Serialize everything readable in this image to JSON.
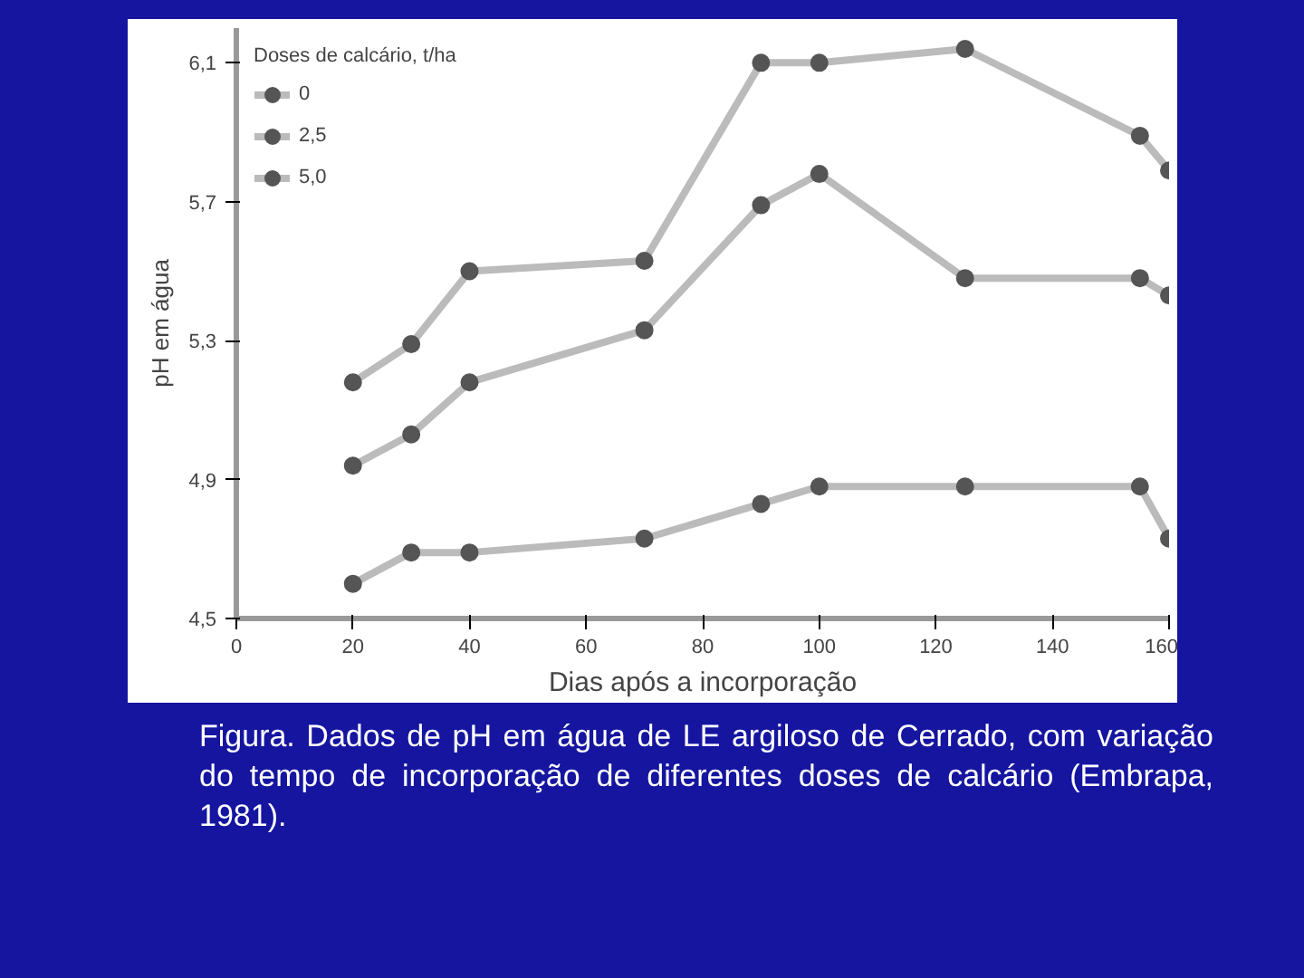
{
  "chart_data": {
    "type": "line",
    "xlabel": "Dias após a incorporação",
    "ylabel": "pH em água",
    "legend_title": "Doses de calcário, t/ha",
    "x": [
      20,
      30,
      40,
      70,
      90,
      100,
      125,
      155,
      160
    ],
    "series": [
      {
        "name": "0",
        "color": "#555555",
        "values": [
          4.6,
          4.69,
          4.69,
          4.73,
          4.83,
          4.88,
          4.88,
          4.88,
          4.73
        ]
      },
      {
        "name": "2,5",
        "color": "#555555",
        "values": [
          4.94,
          5.03,
          5.18,
          5.33,
          5.69,
          5.78,
          5.48,
          5.48,
          5.43
        ]
      },
      {
        "name": "5,0",
        "color": "#555555",
        "values": [
          5.18,
          5.29,
          5.5,
          5.53,
          6.1,
          6.1,
          6.14,
          5.89,
          5.79
        ]
      }
    ],
    "xlim": [
      0,
      160
    ],
    "xticks": [
      0,
      20,
      40,
      60,
      80,
      100,
      120,
      140,
      160
    ],
    "ylim": [
      4.5,
      6.2
    ],
    "yticks": [
      {
        "value": 4.5,
        "label": "4,5"
      },
      {
        "value": 4.9,
        "label": "4,9"
      },
      {
        "value": 5.3,
        "label": "5,3"
      },
      {
        "value": 5.7,
        "label": "5,7"
      },
      {
        "value": 6.1,
        "label": "6,1"
      }
    ],
    "grid": false,
    "legend": "top left",
    "marker": "circle",
    "line_style": "solid",
    "annotations": [
      "Figura. Dados de pH em água de LE argiloso de Cerrado, com variação do tempo de incorporação de diferentes doses de calcário (Embrapa, 1981)."
    ]
  }
}
